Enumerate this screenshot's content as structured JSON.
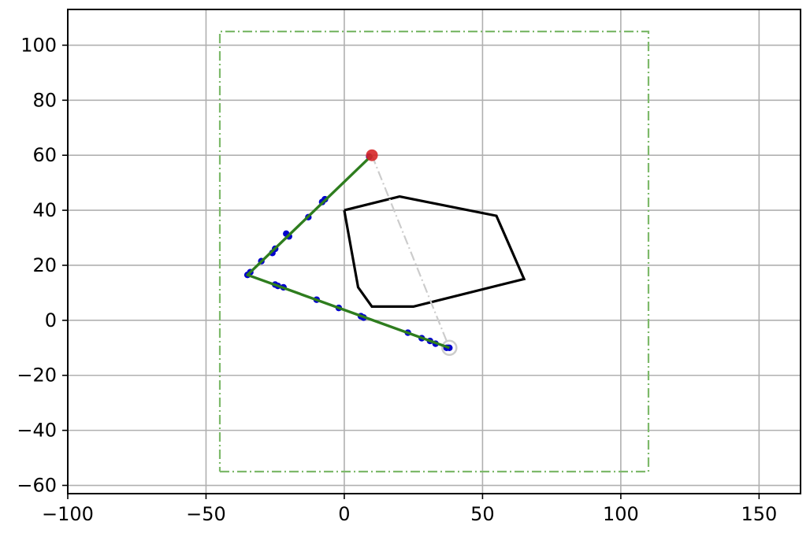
{
  "chart_data": {
    "type": "line",
    "title": "",
    "xlabel": "",
    "ylabel": "",
    "xlim": [
      -100,
      165
    ],
    "ylim": [
      -63,
      113
    ],
    "grid": true,
    "x_ticks": [
      -100,
      -50,
      0,
      50,
      100,
      150
    ],
    "y_ticks": [
      -60,
      -40,
      -20,
      0,
      20,
      40,
      60,
      80,
      100
    ],
    "x_tick_labels": [
      "−100",
      "−50",
      "0",
      "50",
      "100",
      "150"
    ],
    "y_tick_labels": [
      "−60",
      "−40",
      "−20",
      "0",
      "20",
      "40",
      "60",
      "80",
      "100"
    ],
    "boundary": {
      "x": [
        -45,
        110,
        110,
        -45,
        -45
      ],
      "y": [
        -55,
        -55,
        105,
        105,
        -55
      ],
      "color": "#7db96a",
      "style": "dash-dot"
    },
    "obstacle": {
      "x": [
        0,
        20,
        55,
        65,
        25,
        10,
        5,
        0
      ],
      "y": [
        40,
        45,
        38,
        15,
        5,
        5,
        12,
        40
      ],
      "color": "#000000"
    },
    "straight_line": {
      "x": [
        10,
        38
      ],
      "y": [
        60,
        -10
      ],
      "color": "#cccccc",
      "style": "dash-dot"
    },
    "path": {
      "x": [
        10,
        -35,
        38
      ],
      "y": [
        60,
        16.5,
        -10
      ],
      "color": "#2e7d1e"
    },
    "samples": {
      "x": [
        9,
        -7,
        -8,
        -13,
        -20,
        -21,
        -25,
        -26,
        -30,
        -34,
        -35,
        -25,
        -24,
        -22,
        -10,
        -2,
        6,
        7,
        23,
        28,
        31,
        33,
        37,
        38
      ],
      "y": [
        59.5,
        44,
        43,
        37.5,
        30.5,
        31.5,
        26,
        24.5,
        21.5,
        17.5,
        16.5,
        13,
        12.5,
        12,
        7.5,
        4.5,
        1.5,
        1,
        -4.5,
        -6.5,
        -7.5,
        -8.5,
        -10,
        -10
      ],
      "color": "#0000cc"
    },
    "start_point": {
      "x": 10,
      "y": 60,
      "color": "#d62728"
    },
    "goal_point": {
      "x": 38,
      "y": -10,
      "color": "#cccccc"
    }
  }
}
